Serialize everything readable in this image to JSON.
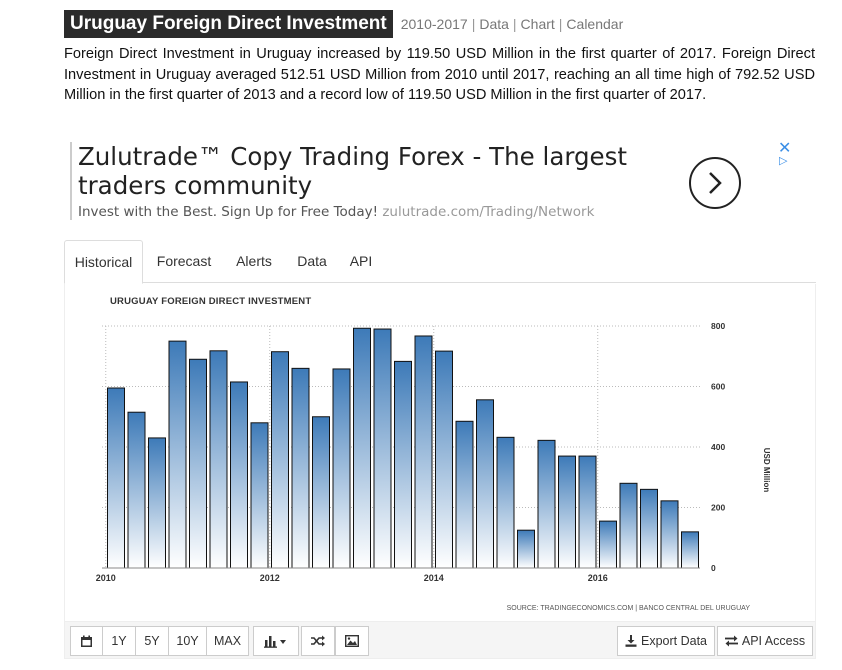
{
  "header": {
    "title": "Uruguay Foreign Direct Investment",
    "years": "2010-2017",
    "links": [
      "Data",
      "Chart",
      "Calendar"
    ]
  },
  "summary": "Foreign Direct Investment in Uruguay increased by 119.50 USD Million in the first quarter of 2017. Foreign Direct Investment in Uruguay averaged 512.51 USD Million from 2010 until 2017, reaching an all time high of 792.52 USD Million in the first quarter of 2013 and a record low of 119.50 USD Million in the first quarter of 2017.",
  "ad": {
    "headline": "Zulutrade™ Copy Trading Forex - The largest traders community",
    "description": "Invest with the Best. Sign Up for Free Today!",
    "url": "zulutrade.com/Trading/Network",
    "close_icon": "close-icon",
    "choices_icon": "adchoices-icon",
    "accent_color": "#3a8ee6"
  },
  "tabs": [
    "Historical",
    "Forecast",
    "Alerts",
    "Data",
    "API"
  ],
  "active_tab": "Historical",
  "toolbar": {
    "calendar_icon": "calendar-icon",
    "ranges": [
      "1Y",
      "5Y",
      "10Y",
      "MAX"
    ],
    "chart_type_icon": "bar-chart-icon",
    "shuffle_icon": "shuffle-icon",
    "image_icon": "image-icon",
    "export_label": "Export Data",
    "api_label": "API Access"
  },
  "chart_data": {
    "type": "bar",
    "title": "URUGUAY FOREIGN DIRECT INVESTMENT",
    "ylabel": "USD Million",
    "source": "SOURCE: TRADINGECONOMICS.COM | BANCO CENTRAL DEL URUGUAY",
    "ylim": [
      0,
      800
    ],
    "yticks": [
      0,
      200,
      400,
      600,
      800
    ],
    "xtick_labels": [
      "2010",
      "2012",
      "2014",
      "2016"
    ],
    "categories": [
      "2010Q1",
      "2010Q2",
      "2010Q3",
      "2010Q4",
      "2011Q1",
      "2011Q2",
      "2011Q3",
      "2011Q4",
      "2012Q1",
      "2012Q2",
      "2012Q3",
      "2012Q4",
      "2013Q1",
      "2013Q2",
      "2013Q3",
      "2013Q4",
      "2014Q1",
      "2014Q2",
      "2014Q3",
      "2014Q4",
      "2015Q1",
      "2015Q2",
      "2015Q3",
      "2015Q4",
      "2016Q1",
      "2016Q2",
      "2016Q3",
      "2016Q4",
      "2017Q1"
    ],
    "values": [
      595,
      515,
      430,
      750,
      690,
      718,
      615,
      480,
      715,
      660,
      500,
      658,
      792.52,
      790,
      683,
      767,
      717,
      485,
      556,
      432,
      125,
      422,
      370,
      370,
      155,
      280,
      260,
      222,
      119.5
    ],
    "bar_gradient": [
      "#ffffff",
      "#3d7ab8"
    ],
    "grid": true,
    "legend": "none"
  }
}
